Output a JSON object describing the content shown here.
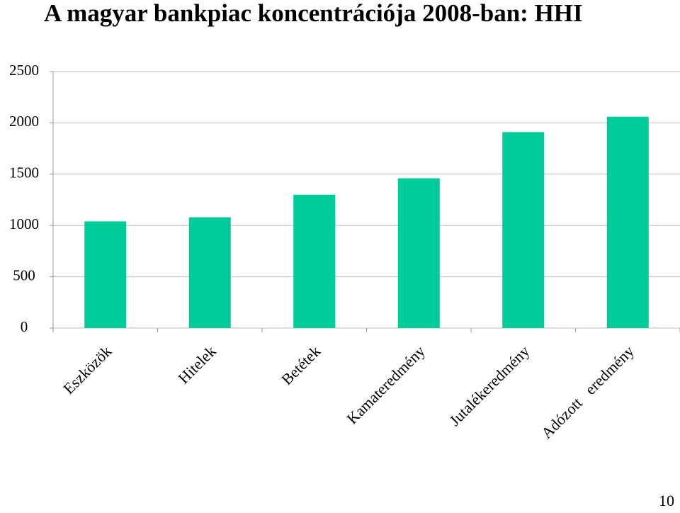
{
  "chart_data": {
    "type": "bar",
    "title": "A magyar bankpiac koncentrációja 2008-ban: HHI",
    "categories": [
      "Eszközök",
      "Hitelek",
      "Betétek",
      "Kamateredmény",
      "Jutalékeredmény",
      "Adózott   eredmény"
    ],
    "values": [
      1040,
      1080,
      1300,
      1460,
      1910,
      2060
    ],
    "color": "#00cc99",
    "ylim": [
      0,
      2500
    ],
    "yticks": [
      0,
      500,
      1000,
      1500,
      2000,
      2500
    ],
    "grid": true
  },
  "page_number": "10"
}
